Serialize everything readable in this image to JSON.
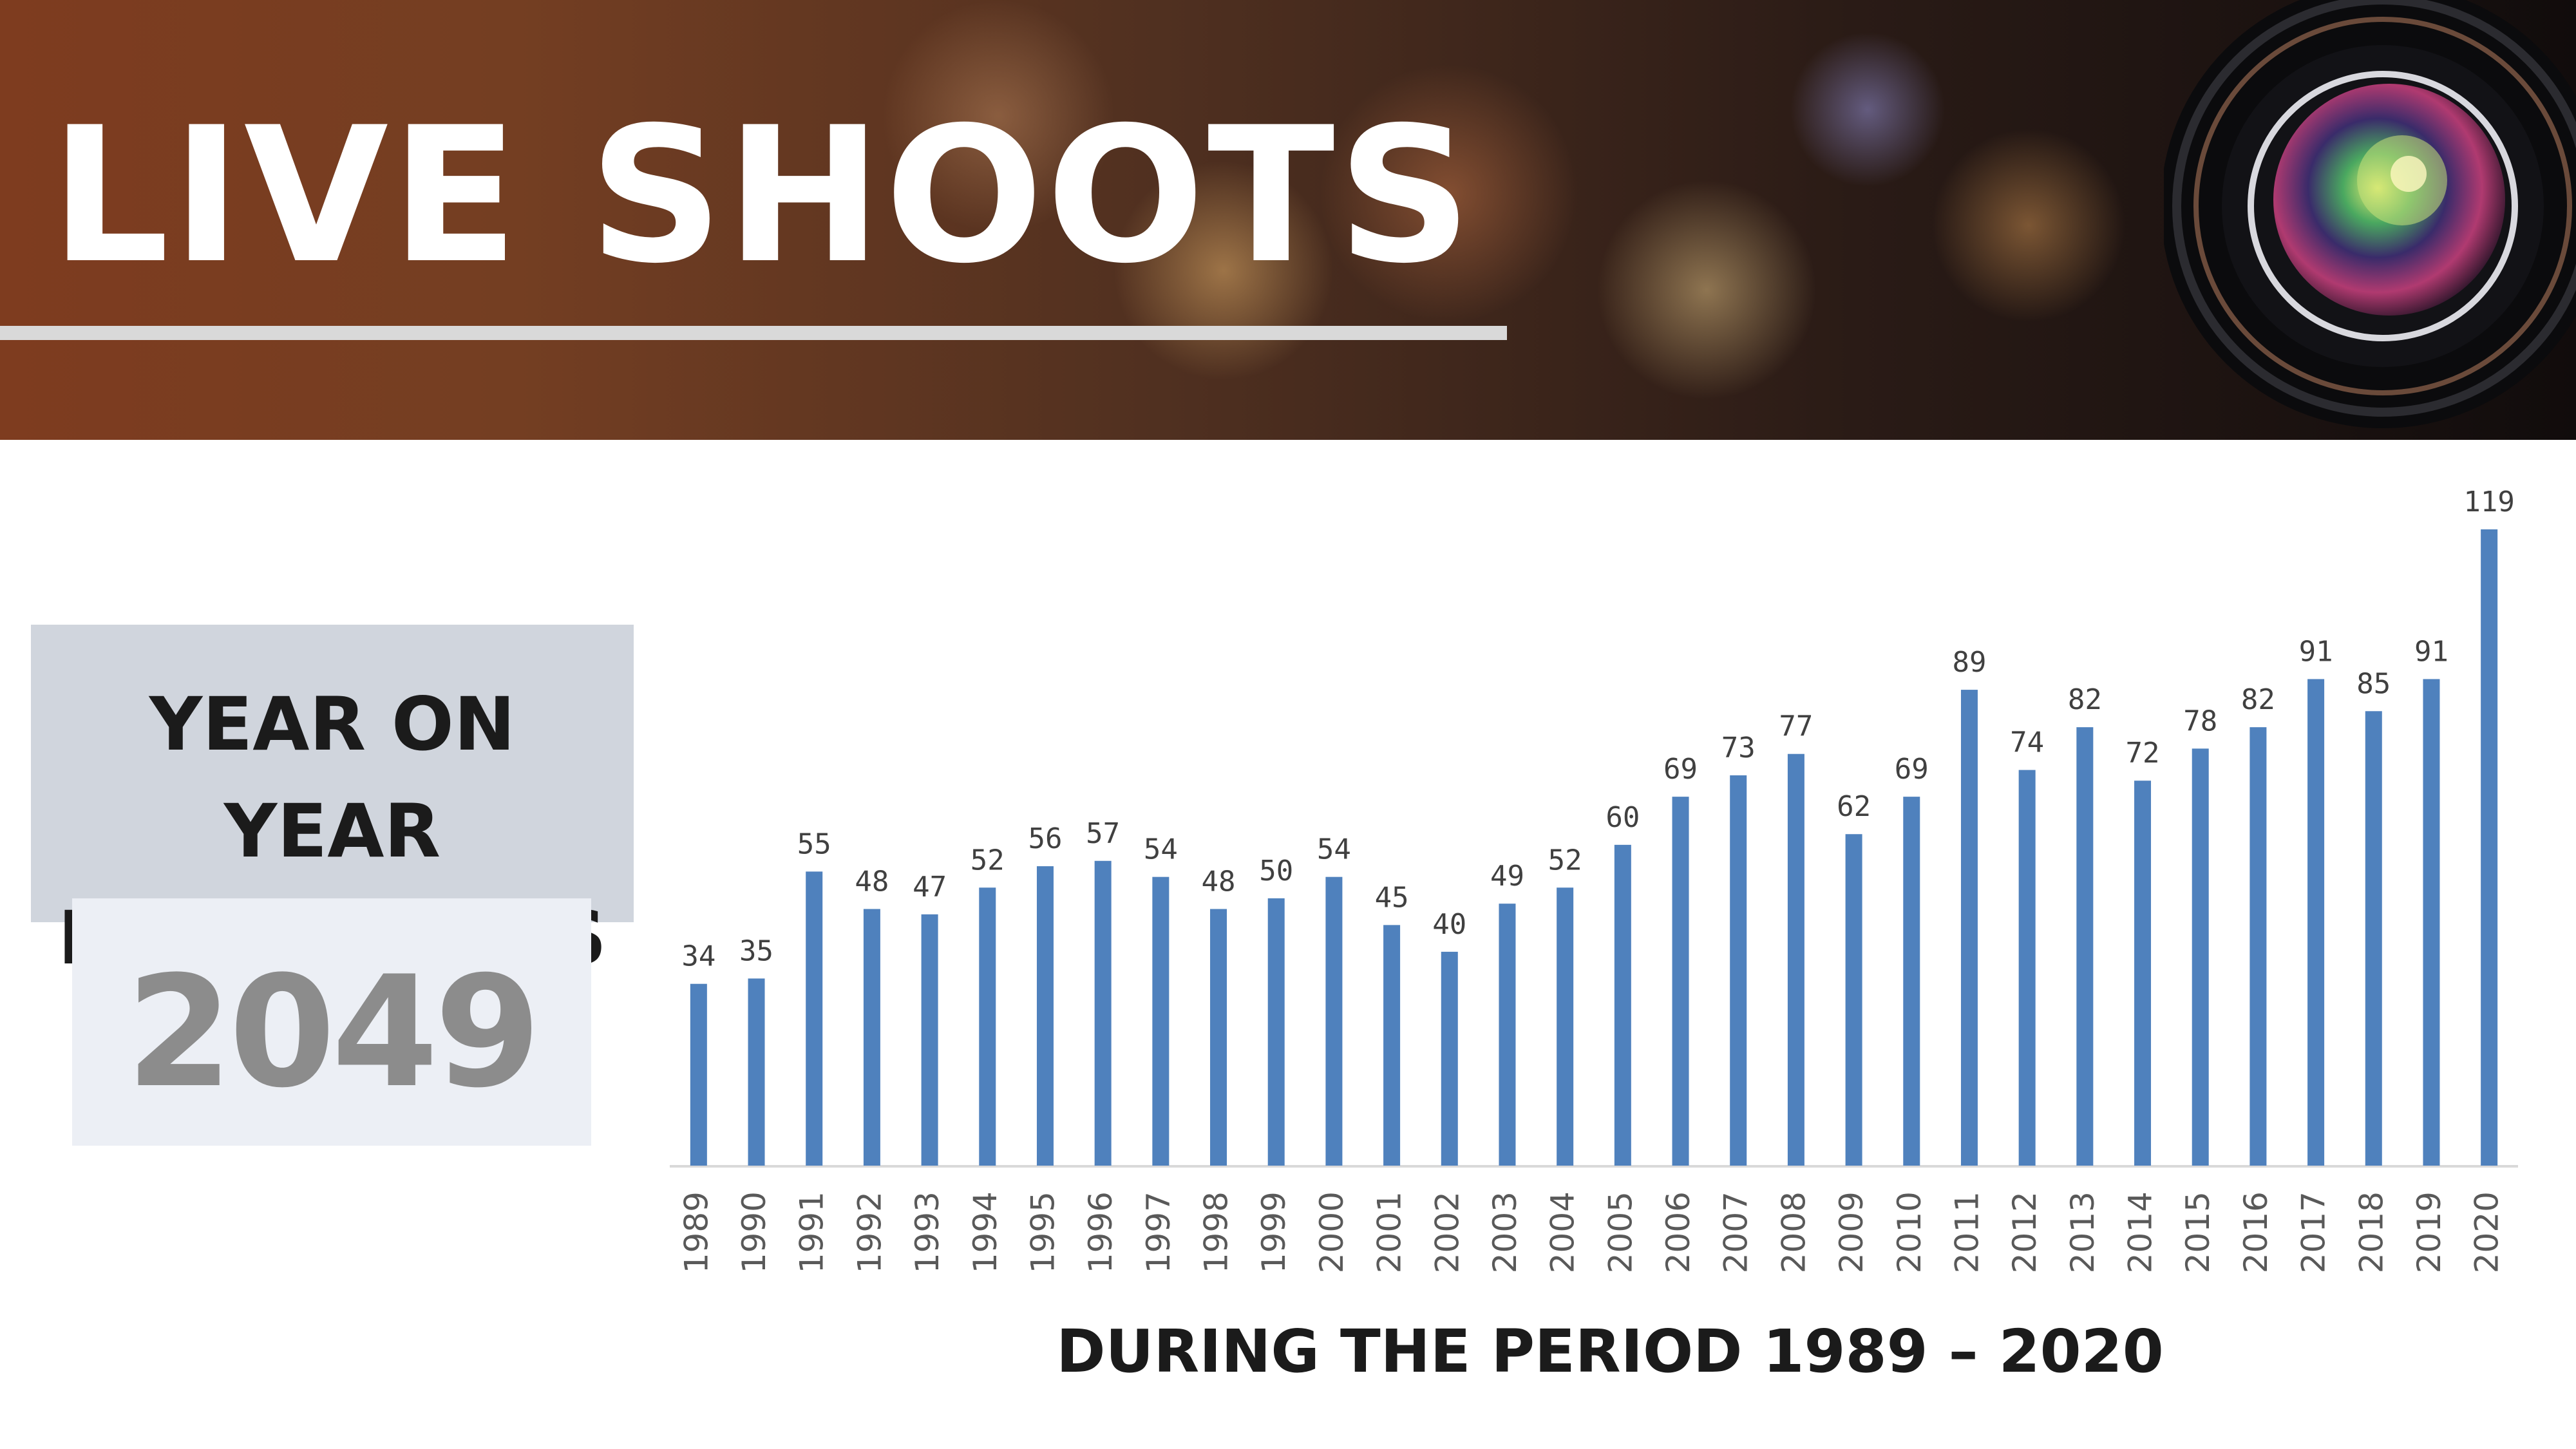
{
  "header": {
    "title": "LIVE SHOOTS"
  },
  "summary": {
    "title": "YEAR ON YEAR\nLIVE SHOOTS",
    "total": "2049"
  },
  "caption": "DURING THE PERIOD 1989 – 2020",
  "colors": {
    "bar": "#4f81bd",
    "axis": "#d9d9d9",
    "tick_label": "#595959",
    "data_label": "#404040"
  },
  "chart_data": {
    "type": "bar",
    "title": "",
    "xlabel": "DURING THE PERIOD 1989 – 2020",
    "ylabel": "",
    "categories": [
      "1989",
      "1990",
      "1991",
      "1992",
      "1993",
      "1994",
      "1995",
      "1996",
      "1997",
      "1998",
      "1999",
      "2000",
      "2001",
      "2002",
      "2003",
      "2004",
      "2005",
      "2006",
      "2007",
      "2008",
      "2009",
      "2010",
      "2011",
      "2012",
      "2013",
      "2014",
      "2015",
      "2016",
      "2017",
      "2018",
      "2019",
      "2020"
    ],
    "values": [
      34,
      35,
      55,
      48,
      47,
      52,
      56,
      57,
      54,
      48,
      50,
      54,
      45,
      40,
      49,
      52,
      60,
      69,
      73,
      77,
      62,
      69,
      89,
      74,
      82,
      72,
      78,
      82,
      91,
      85,
      91,
      119
    ],
    "ylim": [
      0,
      119
    ],
    "grid": false,
    "legend": "none",
    "data_labels": true
  }
}
